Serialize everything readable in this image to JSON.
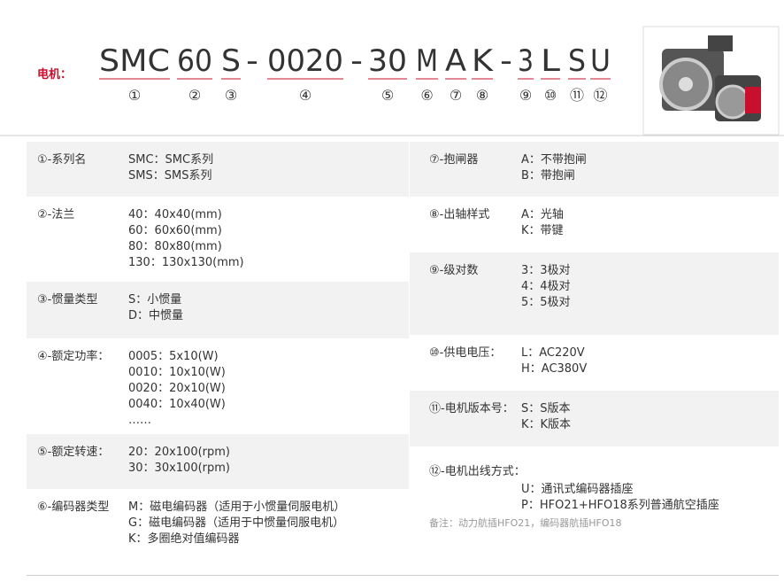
{
  "header": {
    "label": "电机：",
    "segments": [
      {
        "text": "SMC",
        "index": "①"
      },
      {
        "text": "60",
        "index": "②"
      },
      {
        "text": "S",
        "index": "③"
      },
      {
        "text": "-"
      },
      {
        "text": "0020",
        "index": "④"
      },
      {
        "text": "-"
      },
      {
        "text": "30",
        "index": "⑤"
      },
      {
        "text": "M",
        "index": "⑥"
      },
      {
        "text": "A",
        "index": "⑦"
      },
      {
        "text": "K",
        "index": "⑧"
      },
      {
        "text": "-"
      },
      {
        "text": "3",
        "index": "⑨"
      },
      {
        "text": "L",
        "index": "⑩"
      },
      {
        "text": "S",
        "index": "⑪"
      },
      {
        "text": "U",
        "index": "⑫"
      }
    ]
  },
  "table": {
    "left": [
      {
        "label": "①-系列名",
        "lines": [
          "SMC：SMC系列",
          "SMS：SMS系列"
        ]
      },
      {
        "label": "②-法兰",
        "lines": [
          "40：40x40(mm)",
          "60：60x60(mm)",
          "80：80x80(mm)",
          "130：130x130(mm)"
        ]
      },
      {
        "label": "③-惯量类型",
        "lines": [
          "S：小惯量",
          "D：中惯量"
        ]
      },
      {
        "label": "④-额定功率：",
        "lines": [
          "0005：5x10(W)",
          "0010：10x10(W)",
          "0020：20x10(W)",
          "0040：10x40(W)",
          "……"
        ]
      },
      {
        "label": "⑤-额定转速：",
        "lines": [
          "20：20x100(rpm)",
          "30：30x100(rpm)"
        ]
      },
      {
        "label": "⑥-编码器类型",
        "lines": [
          "M：磁电编码器（适用于小惯量伺服电机）",
          "G：磁电编码器（适用于中惯量伺服电机）",
          "K：多圈绝对值编码器"
        ]
      }
    ],
    "right": [
      {
        "label": "⑦-抱闸器",
        "lines": [
          "A：不带抱闸",
          "B：带抱闸"
        ]
      },
      {
        "label": "⑧-出轴样式",
        "lines": [
          "A：光轴",
          "K：带键"
        ]
      },
      {
        "label": "⑨-级对数",
        "lines": [
          "3：3极对",
          "4：4极对",
          "5：5极对"
        ]
      },
      {
        "label": "⑩-供电电压：",
        "lines": [
          "L：AC220V",
          "H：AC380V"
        ]
      },
      {
        "label": "⑪-电机版本号：",
        "lines": [
          "S：S版本",
          "K：K版本"
        ]
      },
      {
        "label": "⑫-电机出线方式：",
        "lines": [
          "U：通讯式编码器插座",
          "P：HFO21+HFO18系列普通航空插座"
        ],
        "note": "备注：动力航插HFO21，编码器航插HFO18"
      }
    ]
  }
}
